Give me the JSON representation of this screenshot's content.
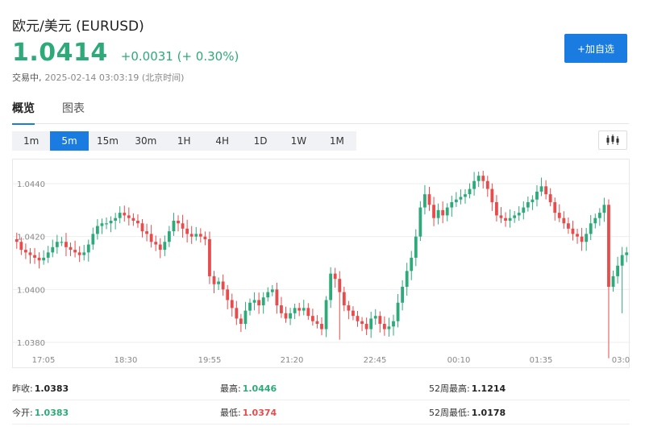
{
  "header": {
    "title": "欧元/美元  (EURUSD)",
    "price": "1.0414",
    "change": "+0.0031 (+ 0.30%)",
    "status_label": "交易中,",
    "status_time": "2025-02-14 03:03:19  (北京时间)",
    "add_button": "+加自选"
  },
  "tabs": [
    {
      "label": "概览",
      "active": true
    },
    {
      "label": "图表",
      "active": false
    }
  ],
  "periods": [
    "1m",
    "5m",
    "15m",
    "30m",
    "1H",
    "4H",
    "1D",
    "1W",
    "1M"
  ],
  "active_period": "5m",
  "colors": {
    "up": "#2eaa7a",
    "down": "#e84b4b",
    "accent": "#1a7be0"
  },
  "chart_data": {
    "type": "candlestick",
    "y_ticks": [
      "1.0440",
      "1.0420",
      "1.0400",
      "1.0380"
    ],
    "x_ticks": [
      "17:05",
      "18:30",
      "19:55",
      "21:20",
      "22:45",
      "00:10",
      "01:35",
      "03:0"
    ],
    "ylim": [
      1.0372,
      1.0449
    ],
    "grid": true,
    "close_series": [
      1.0418,
      1.0415,
      1.0414,
      1.0413,
      1.0412,
      1.0411,
      1.0412,
      1.0414,
      1.0416,
      1.0418,
      1.0418,
      1.0416,
      1.0415,
      1.0414,
      1.0413,
      1.0414,
      1.0417,
      1.0421,
      1.0424,
      1.0425,
      1.0425,
      1.0426,
      1.0427,
      1.0429,
      1.0428,
      1.0427,
      1.0426,
      1.0425,
      1.0422,
      1.0421,
      1.0418,
      1.0417,
      1.0415,
      1.0418,
      1.0422,
      1.0426,
      1.0425,
      1.0423,
      1.0421,
      1.042,
      1.0421,
      1.042,
      1.0419,
      1.0405,
      1.0402,
      1.0403,
      1.04,
      1.0396,
      1.0393,
      1.0389,
      1.0387,
      1.0392,
      1.0395,
      1.0396,
      1.0394,
      1.0397,
      1.0399,
      1.04,
      1.0394,
      1.0391,
      1.0389,
      1.0391,
      1.0393,
      1.0392,
      1.0393,
      1.039,
      1.0388,
      1.0387,
      1.0385,
      1.0396,
      1.0406,
      1.0404,
      1.0399,
      1.0394,
      1.0392,
      1.039,
      1.0388,
      1.0387,
      1.0385,
      1.0389,
      1.039,
      1.0387,
      1.0385,
      1.0386,
      1.0388,
      1.0395,
      1.0401,
      1.0407,
      1.0412,
      1.042,
      1.0431,
      1.0436,
      1.0432,
      1.0427,
      1.043,
      1.0428,
      1.0431,
      1.0433,
      1.0434,
      1.0435,
      1.0436,
      1.0438,
      1.0441,
      1.0443,
      1.0441,
      1.0438,
      1.0433,
      1.0428,
      1.0427,
      1.0426,
      1.0427,
      1.0428,
      1.0429,
      1.0431,
      1.0433,
      1.0434,
      1.0437,
      1.0439,
      1.0436,
      1.0433,
      1.0429,
      1.0427,
      1.0425,
      1.0423,
      1.0421,
      1.042,
      1.0418,
      1.0421,
      1.0425,
      1.0427,
      1.0429,
      1.0432,
      1.0401,
      1.0405,
      1.0409,
      1.0413,
      1.0414
    ]
  },
  "stats": [
    [
      {
        "label": "昨收:",
        "value": "1.0383",
        "tone": ""
      },
      {
        "label": "最高:",
        "value": "1.0446",
        "tone": "up"
      },
      {
        "label": "52周最高:",
        "value": "1.1214",
        "tone": ""
      }
    ],
    [
      {
        "label": "今开:",
        "value": "1.0383",
        "tone": "up"
      },
      {
        "label": "最低:",
        "value": "1.0374",
        "tone": "down"
      },
      {
        "label": "52周最低:",
        "value": "1.0178",
        "tone": ""
      }
    ]
  ]
}
